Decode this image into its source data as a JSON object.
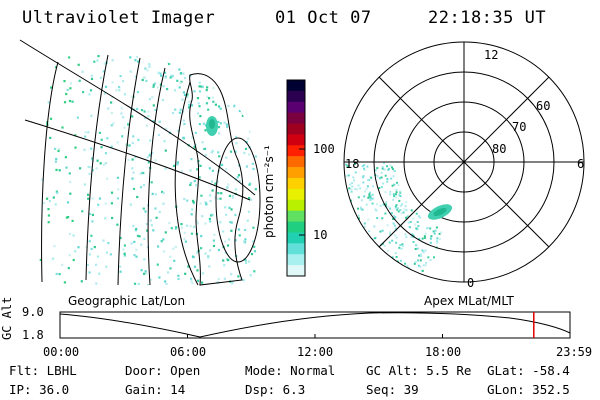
{
  "header": {
    "instrument": "Ultraviolet Imager",
    "date": "01 Oct 07",
    "time": "22:18:35 UT"
  },
  "colorbar": {
    "unit_label": "photon cm⁻²s⁻¹",
    "ticks": [
      "100",
      "10"
    ],
    "colors": [
      "#000033",
      "#2b0050",
      "#5a0070",
      "#7a0040",
      "#a00020",
      "#d00010",
      "#ff2000",
      "#ff6a00",
      "#ffa000",
      "#ffd000",
      "#e8f000",
      "#b8f000",
      "#60e060",
      "#20d080",
      "#20d0b0",
      "#60e0d8",
      "#a8f0f0",
      "#e0f8f8"
    ]
  },
  "panels": {
    "left_label": "Geographic Lat/Lon",
    "right_label": "Apex MLat/MLT",
    "polar": {
      "lat_labels": [
        "80",
        "70",
        "60"
      ],
      "mlt_labels": {
        "top": "12",
        "left": "18",
        "right": "6",
        "bottom": "0"
      }
    }
  },
  "orbit": {
    "ylabel": "GC Alt",
    "y_max": "9.0",
    "y_min": "1.8",
    "x_ticks": [
      "00:00",
      "06:00",
      "12:00",
      "18:00",
      "23:59"
    ],
    "current_time_fraction": 0.929
  },
  "status": {
    "row1": [
      {
        "label": "Flt:",
        "value": "LBHL"
      },
      {
        "label": "Door:",
        "value": "Open"
      },
      {
        "label": "Mode:",
        "value": "Normal"
      },
      {
        "label": "GC Alt:",
        "value": "5.5 Re"
      },
      {
        "label": "GLat:",
        "value": "-58.4"
      }
    ],
    "row2": [
      {
        "label": "IP:",
        "value": "36.0"
      },
      {
        "label": "Gain:",
        "value": "14"
      },
      {
        "label": "Dsp:",
        "value": "6.3"
      },
      {
        "label": "Seq:",
        "value": "39"
      },
      {
        "label": "GLon:",
        "value": "352.5"
      }
    ]
  }
}
